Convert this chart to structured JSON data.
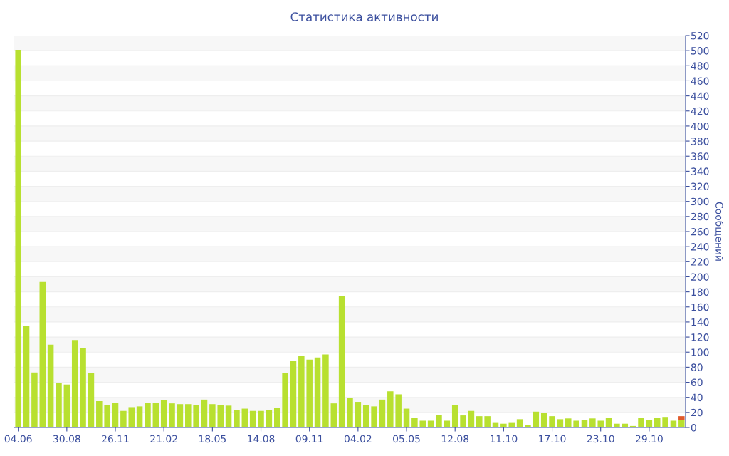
{
  "chart_data": {
    "type": "bar",
    "title": "Статистика активности",
    "ylabel": "Сообщений",
    "categories": [
      "04.06",
      null,
      null,
      null,
      null,
      null,
      "30.08",
      null,
      null,
      null,
      null,
      null,
      "26.11",
      null,
      null,
      null,
      null,
      null,
      "21.02",
      null,
      null,
      null,
      null,
      null,
      "18.05",
      null,
      null,
      null,
      null,
      null,
      "14.08",
      null,
      null,
      null,
      null,
      null,
      "09.11",
      null,
      null,
      null,
      null,
      null,
      "04.02",
      null,
      null,
      null,
      null,
      null,
      "05.05",
      null,
      null,
      null,
      null,
      null,
      "12.08",
      null,
      null,
      null,
      null,
      null,
      "11.10",
      null,
      null,
      null,
      null,
      null,
      "17.10",
      null,
      null,
      null,
      null,
      null,
      "23.10",
      null,
      null,
      null,
      null,
      null,
      "29.10",
      null,
      null,
      null,
      null
    ],
    "stacked": true,
    "series": [
      {
        "color": "#b8e030",
        "values": [
          501,
          135,
          73,
          193,
          110,
          59,
          57,
          116,
          106,
          72,
          35,
          30,
          33,
          22,
          27,
          28,
          33,
          33,
          36,
          32,
          31,
          31,
          30,
          37,
          31,
          30,
          29,
          23,
          25,
          22,
          22,
          23,
          26,
          72,
          88,
          95,
          90,
          93,
          97,
          32,
          175,
          39,
          34,
          30,
          28,
          37,
          48,
          44,
          25,
          13,
          9,
          9,
          17,
          9,
          30,
          16,
          22,
          15,
          15,
          7,
          5,
          7,
          11,
          3,
          21,
          19,
          15,
          11,
          12,
          9,
          10,
          12,
          9,
          13,
          5,
          5,
          2,
          13,
          10,
          13,
          14,
          9,
          10
        ]
      },
      {
        "color": "#e05a2b",
        "values": [
          0,
          0,
          0,
          0,
          0,
          0,
          0,
          0,
          0,
          0,
          0,
          0,
          0,
          0,
          0,
          0,
          0,
          0,
          0,
          0,
          0,
          0,
          0,
          0,
          0,
          0,
          0,
          0,
          0,
          0,
          0,
          0,
          0,
          0,
          0,
          0,
          0,
          0,
          0,
          0,
          0,
          0,
          0,
          0,
          0,
          0,
          0,
          0,
          0,
          0,
          0,
          0,
          0,
          0,
          0,
          0,
          0,
          0,
          0,
          0,
          0,
          0,
          0,
          0,
          0,
          0,
          0,
          0,
          0,
          0,
          0,
          0,
          0,
          0,
          0,
          0,
          0,
          0,
          0,
          0,
          0,
          0,
          5
        ]
      }
    ],
    "ylim": [
      0,
      520
    ],
    "yticks": [
      0,
      20,
      40,
      60,
      80,
      100,
      120,
      140,
      160,
      180,
      200,
      220,
      240,
      260,
      280,
      300,
      320,
      340,
      360,
      380,
      400,
      420,
      440,
      460,
      480,
      500,
      520
    ],
    "grid": "y",
    "legend": false
  }
}
